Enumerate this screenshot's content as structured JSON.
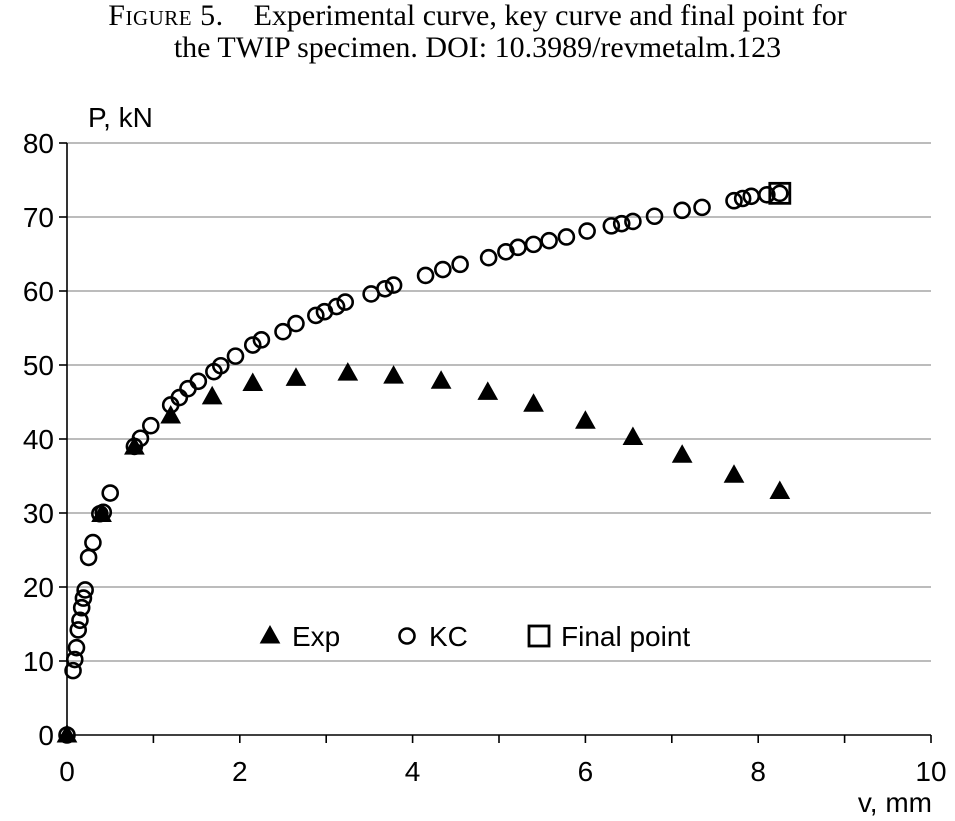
{
  "caption": {
    "figure_label": "Figure 5.",
    "line1_rest": "Experimental curve, key curve and final point for",
    "line2": "the TWIP specimen. DOI: 10.3989/revmetalm.123"
  },
  "chart_data": {
    "type": "scatter",
    "xlabel": "v, mm",
    "ylabel": "P, kN",
    "xlim": [
      0,
      10
    ],
    "ylim": [
      0,
      80
    ],
    "xticks": [
      0,
      2,
      4,
      6,
      8,
      10
    ],
    "yticks": [
      0,
      10,
      20,
      30,
      40,
      50,
      60,
      70,
      80
    ],
    "grid": "horizontal",
    "legend_position": "bottom-center",
    "series": [
      {
        "name": "Exp",
        "marker": "filled-triangle",
        "x": [
          0,
          0.4,
          0.78,
          1.2,
          1.68,
          2.15,
          2.65,
          3.25,
          3.78,
          4.33,
          4.87,
          5.4,
          6.0,
          6.55,
          7.12,
          7.72,
          8.25
        ],
        "y": [
          0,
          29.8,
          38.9,
          43.1,
          45.7,
          47.5,
          48.2,
          48.9,
          48.5,
          47.8,
          46.3,
          44.7,
          42.4,
          40.2,
          37.8,
          35.1,
          32.9
        ]
      },
      {
        "name": "KC",
        "marker": "open-circle",
        "x": [
          0,
          0.07,
          0.09,
          0.11,
          0.13,
          0.15,
          0.17,
          0.19,
          0.21,
          0.25,
          0.3,
          0.38,
          0.42,
          0.5,
          0.78,
          0.85,
          0.97,
          1.2,
          1.3,
          1.4,
          1.52,
          1.7,
          1.78,
          1.95,
          2.15,
          2.25,
          2.5,
          2.65,
          2.88,
          2.98,
          3.12,
          3.22,
          3.52,
          3.68,
          3.78,
          4.15,
          4.35,
          4.55,
          4.88,
          5.08,
          5.22,
          5.4,
          5.58,
          5.78,
          6.02,
          6.3,
          6.42,
          6.55,
          6.8,
          7.12,
          7.35,
          7.72,
          7.82,
          7.92,
          8.1,
          8.25
        ],
        "y": [
          0,
          8.7,
          10.2,
          11.8,
          14.2,
          15.5,
          17.2,
          18.5,
          19.6,
          24.0,
          26.0,
          29.9,
          30.1,
          32.7,
          39.0,
          40.1,
          41.8,
          44.6,
          45.6,
          46.8,
          47.8,
          49.1,
          49.9,
          51.2,
          52.7,
          53.4,
          54.5,
          55.6,
          56.7,
          57.2,
          57.9,
          58.5,
          59.6,
          60.3,
          60.8,
          62.1,
          62.9,
          63.6,
          64.5,
          65.3,
          65.9,
          66.3,
          66.8,
          67.3,
          68.1,
          68.8,
          69.1,
          69.4,
          70.1,
          70.9,
          71.3,
          72.2,
          72.5,
          72.8,
          73.0,
          73.2
        ]
      },
      {
        "name": "Final point",
        "marker": "open-square",
        "x": [
          8.25
        ],
        "y": [
          73.2
        ]
      }
    ]
  }
}
